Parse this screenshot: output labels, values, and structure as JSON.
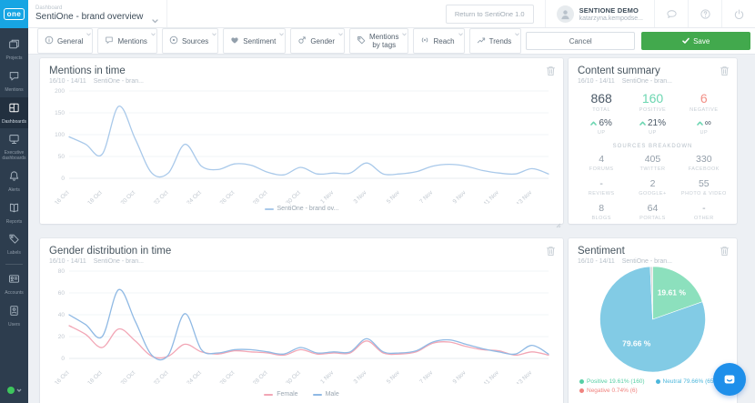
{
  "header": {
    "logo_text": "one",
    "dashboard_label": "Dashboard",
    "dashboard_name": "SentiOne - brand overview",
    "return_button": "Return to SentiOne 1.0",
    "user_name": "SENTIONE DEMO",
    "user_email": "katarzyna.kempodse..."
  },
  "toolbar": {
    "chips": [
      {
        "label": "General",
        "icon": "info-icon"
      },
      {
        "label": "Mentions",
        "icon": "mentions-icon"
      },
      {
        "label": "Sources",
        "icon": "sources-icon"
      },
      {
        "label": "Sentiment",
        "icon": "sentiment-icon"
      },
      {
        "label": "Gender",
        "icon": "gender-icon"
      },
      {
        "label": "Mentions by tags",
        "icon": "tags-icon"
      },
      {
        "label": "Reach",
        "icon": "reach-icon"
      },
      {
        "label": "Trends",
        "icon": "trends-icon"
      }
    ],
    "cancel_label": "Cancel",
    "save_label": "Save"
  },
  "sidebar": {
    "items": [
      {
        "label": "Projects",
        "icon": "projects-icon"
      },
      {
        "label": "Mentions",
        "icon": "mentions-icon"
      },
      {
        "label": "Dashboards",
        "icon": "dashboards-icon",
        "active": true
      },
      {
        "label": "Executive dashboards",
        "icon": "executive-dashboards-icon"
      },
      {
        "label": "Alerts",
        "icon": "alerts-icon"
      },
      {
        "label": "Reports",
        "icon": "reports-icon"
      },
      {
        "label": "Labels",
        "icon": "labels-icon"
      },
      {
        "divider": true
      },
      {
        "label": "Accounts",
        "icon": "accounts-icon"
      },
      {
        "label": "Users",
        "icon": "users-icon"
      }
    ],
    "status_color": "#3ec65d"
  },
  "panels": {
    "mentions": {
      "title": "Mentions in time",
      "subtitle_range": "16/10 - 14/11",
      "subtitle_project": "SentiOne - bran..."
    },
    "content_summary": {
      "title": "Content summary",
      "subtitle_range": "16/10 - 14/11",
      "subtitle_project": "SentiOne - bran...",
      "stats": [
        {
          "value": "868",
          "label": "TOTAL",
          "cls": "total"
        },
        {
          "value": "160",
          "label": "POSITIVE",
          "cls": "positive"
        },
        {
          "value": "6",
          "label": "NEGATIVE",
          "cls": "negative"
        }
      ],
      "deltas": [
        {
          "value": "6%",
          "label": "UP"
        },
        {
          "value": "21%",
          "label": "UP"
        },
        {
          "value": "∞",
          "label": "UP"
        }
      ],
      "breakdown_title": "SOURCES BREAKDOWN",
      "breakdown": [
        {
          "value": "4",
          "label": "FORUMS"
        },
        {
          "value": "405",
          "label": "TWITTER"
        },
        {
          "value": "330",
          "label": "FACEBOOK"
        },
        {
          "value": "-",
          "label": "REVIEWS"
        },
        {
          "value": "2",
          "label": "GOOGLE+"
        },
        {
          "value": "55",
          "label": "PHOTO & VIDEO"
        },
        {
          "value": "8",
          "label": "BLOGS"
        },
        {
          "value": "64",
          "label": "PORTALS"
        },
        {
          "value": "-",
          "label": "OTHER"
        }
      ]
    },
    "gender": {
      "title": "Gender distribution in time",
      "subtitle_range": "16/10 - 14/11",
      "subtitle_project": "SentiOne - bran..."
    },
    "sentiment": {
      "title": "Sentiment",
      "subtitle_range": "16/10 - 14/11",
      "subtitle_project": "SentiOne - bran..."
    }
  },
  "colors": {
    "brand_blue": "#17a5e3",
    "save_green": "#42a94d",
    "line_blue": "#a9c9ea",
    "female_pink": "#f2a6b5",
    "pie_green": "#8ce0bd",
    "pie_blue": "#82cbe5",
    "pie_gray": "#dcdcdc",
    "positive_teal": "#6cd6b1",
    "negative_red": "#f29087",
    "sidebar_navy": "#2d3d4e"
  },
  "chart_data": [
    {
      "id": "mentions_in_time",
      "type": "line",
      "title": "Mentions in time",
      "x": [
        "16 Oct",
        "17 Oct",
        "18 Oct",
        "19 Oct",
        "20 Oct",
        "21 Oct",
        "22 Oct",
        "23 Oct",
        "24 Oct",
        "25 Oct",
        "26 Oct",
        "27 Oct",
        "28 Oct",
        "29 Oct",
        "30 Oct",
        "31 Oct",
        "1 Nov",
        "2 Nov",
        "3 Nov",
        "4 Nov",
        "5 Nov",
        "6 Nov",
        "7 Nov",
        "8 Nov",
        "9 Nov",
        "10 Nov",
        "11 Nov",
        "12 Nov",
        "13 Nov",
        "14 Nov"
      ],
      "x_tick_every": 2,
      "series": [
        {
          "name": "SentiOne - brand ov...",
          "color": "#a9c9ea",
          "values": [
            95,
            78,
            55,
            165,
            90,
            12,
            12,
            78,
            28,
            20,
            33,
            30,
            14,
            8,
            25,
            10,
            12,
            12,
            35,
            10,
            10,
            15,
            28,
            32,
            28,
            18,
            12,
            10,
            22,
            10
          ]
        }
      ],
      "ylim": [
        0,
        200
      ],
      "yticks": [
        0,
        50,
        100,
        150,
        200
      ],
      "grid": true,
      "legend_position": "bottom"
    },
    {
      "id": "gender_distribution",
      "type": "line",
      "title": "Gender distribution in time",
      "x": [
        "16 Oct",
        "17 Oct",
        "18 Oct",
        "19 Oct",
        "20 Oct",
        "21 Oct",
        "22 Oct",
        "23 Oct",
        "24 Oct",
        "25 Oct",
        "26 Oct",
        "27 Oct",
        "28 Oct",
        "29 Oct",
        "30 Oct",
        "31 Oct",
        "1 Nov",
        "2 Nov",
        "3 Nov",
        "4 Nov",
        "5 Nov",
        "6 Nov",
        "7 Nov",
        "8 Nov",
        "9 Nov",
        "10 Nov",
        "11 Nov",
        "12 Nov",
        "13 Nov",
        "14 Nov"
      ],
      "x_tick_every": 2,
      "series": [
        {
          "name": "Female",
          "color": "#f2a6b5",
          "values": [
            30,
            22,
            10,
            27,
            16,
            2,
            2,
            13,
            6,
            4,
            7,
            6,
            5,
            3,
            8,
            4,
            5,
            5,
            16,
            5,
            4,
            6,
            14,
            15,
            11,
            8,
            7,
            3,
            6,
            3
          ]
        },
        {
          "name": "Male",
          "color": "#8fb9e4",
          "values": [
            40,
            31,
            20,
            63,
            34,
            3,
            3,
            41,
            8,
            5,
            8,
            8,
            6,
            4,
            10,
            5,
            6,
            6,
            18,
            6,
            5,
            7,
            15,
            17,
            13,
            9,
            6,
            4,
            12,
            4
          ]
        }
      ],
      "ylim": [
        0,
        80
      ],
      "yticks": [
        0,
        20,
        40,
        60,
        80
      ],
      "grid": true,
      "legend_position": "bottom"
    },
    {
      "id": "sentiment_pie",
      "type": "pie",
      "title": "Sentiment",
      "slices": [
        {
          "label": "Positive",
          "pct": 19.61,
          "count": 160,
          "color": "#8ce0bd",
          "legend_color": "#57cfa5",
          "label_text": "19.61 %"
        },
        {
          "label": "Neutral",
          "pct": 79.66,
          "count": 650,
          "color": "#82cbe5",
          "legend_color": "#4db7dc",
          "label_text": "79.66 %"
        },
        {
          "label": "Negative",
          "pct": 0.74,
          "count": 6,
          "color": "#dcdcdc",
          "legend_color": "#f0837f",
          "label_text": ""
        }
      ],
      "legend_position": "bottom"
    }
  ]
}
